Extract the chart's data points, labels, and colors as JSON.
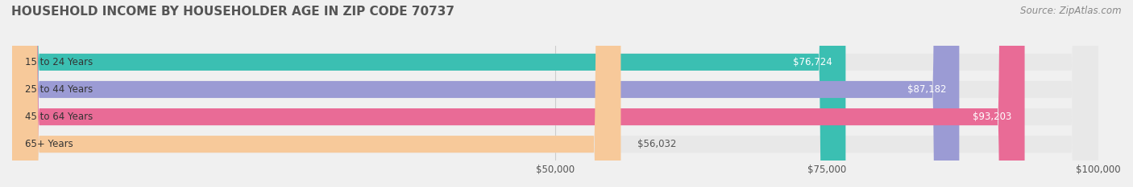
{
  "title": "HOUSEHOLD INCOME BY HOUSEHOLDER AGE IN ZIP CODE 70737",
  "source": "Source: ZipAtlas.com",
  "categories": [
    "15 to 24 Years",
    "25 to 44 Years",
    "45 to 64 Years",
    "65+ Years"
  ],
  "values": [
    76724,
    87182,
    93203,
    56032
  ],
  "bar_colors": [
    "#3bbfb2",
    "#9b9bd4",
    "#e96b96",
    "#f7c99a"
  ],
  "value_labels": [
    "$76,724",
    "$87,182",
    "$93,203",
    "$56,032"
  ],
  "xlim": [
    0,
    100000
  ],
  "xticks": [
    50000,
    75000,
    100000
  ],
  "xtick_labels": [
    "$50,000",
    "$75,000",
    "$100,000"
  ],
  "background_color": "#f0f0f0",
  "bar_background": "#e8e8e8",
  "title_fontsize": 11,
  "source_fontsize": 8.5
}
